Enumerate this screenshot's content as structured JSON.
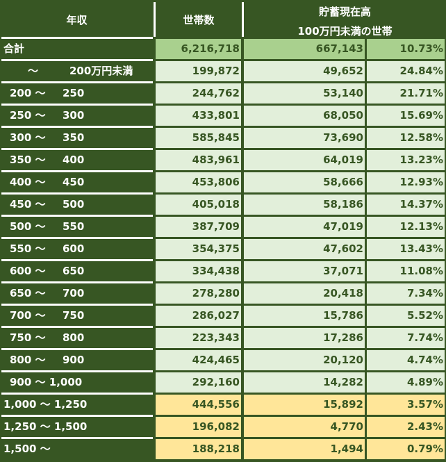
{
  "header": {
    "income": "年収",
    "households": "世帯数",
    "savings_line1": "貯蓄現在高",
    "savings_line2": "100万円未満の世帯"
  },
  "colors": {
    "frame": "#375623",
    "total_fill": "#a9d08e",
    "normal_fill": "#e2efda",
    "high_income_fill": "#ffe699",
    "text_dark": "#375623",
    "text_light": "#ffffff"
  },
  "rows": [
    {
      "label_single": "合計",
      "households": "6,216,718",
      "count": "667,143",
      "pct": "10.73%",
      "fill": "#a9d08e"
    },
    {
      "label_from": "～",
      "label_to": "200万円未満",
      "households": "199,872",
      "count": "49,652",
      "pct": "24.84%",
      "fill": "#e2efda"
    },
    {
      "label_from": "200 ～",
      "label_to": "250",
      "households": "244,762",
      "count": "53,140",
      "pct": "21.71%",
      "fill": "#e2efda"
    },
    {
      "label_from": "250 ～",
      "label_to": "300",
      "households": "433,801",
      "count": "68,050",
      "pct": "15.69%",
      "fill": "#e2efda"
    },
    {
      "label_from": "300 ～",
      "label_to": "350",
      "households": "585,845",
      "count": "73,690",
      "pct": "12.58%",
      "fill": "#e2efda"
    },
    {
      "label_from": "350 ～",
      "label_to": "400",
      "households": "483,961",
      "count": "64,019",
      "pct": "13.23%",
      "fill": "#e2efda"
    },
    {
      "label_from": "400 ～",
      "label_to": "450",
      "households": "453,806",
      "count": "58,666",
      "pct": "12.93%",
      "fill": "#e2efda"
    },
    {
      "label_from": "450 ～",
      "label_to": "500",
      "households": "405,018",
      "count": "58,186",
      "pct": "14.37%",
      "fill": "#e2efda"
    },
    {
      "label_from": "500 ～",
      "label_to": "550",
      "households": "387,709",
      "count": "47,019",
      "pct": "12.13%",
      "fill": "#e2efda"
    },
    {
      "label_from": "550 ～",
      "label_to": "600",
      "households": "354,375",
      "count": "47,602",
      "pct": "13.43%",
      "fill": "#e2efda"
    },
    {
      "label_from": "600 ～",
      "label_to": "650",
      "households": "334,438",
      "count": "37,071",
      "pct": "11.08%",
      "fill": "#e2efda"
    },
    {
      "label_from": "650 ～",
      "label_to": "700",
      "households": "278,280",
      "count": "20,418",
      "pct": "7.34%",
      "fill": "#e2efda"
    },
    {
      "label_from": "700 ～",
      "label_to": "750",
      "households": "286,027",
      "count": "15,786",
      "pct": "5.52%",
      "fill": "#e2efda"
    },
    {
      "label_from": "750 ～",
      "label_to": "800",
      "households": "223,343",
      "count": "17,286",
      "pct": "7.74%",
      "fill": "#e2efda"
    },
    {
      "label_from": "800 ～",
      "label_to": "900",
      "households": "424,465",
      "count": "20,120",
      "pct": "4.74%",
      "fill": "#e2efda"
    },
    {
      "label_from": "900 ～ 1,000",
      "label_to": "",
      "households": "292,160",
      "count": "14,282",
      "pct": "4.89%",
      "fill": "#e2efda"
    },
    {
      "label_single": "1,000 ～ 1,250",
      "households": "444,556",
      "count": "15,892",
      "pct": "3.57%",
      "fill": "#ffe699"
    },
    {
      "label_single": "1,250 ～ 1,500",
      "households": "196,082",
      "count": "4,770",
      "pct": "2.43%",
      "fill": "#ffe699"
    },
    {
      "label_single": "1,500 ～",
      "households": "188,218",
      "count": "1,494",
      "pct": "0.79%",
      "fill": "#ffe699"
    }
  ]
}
